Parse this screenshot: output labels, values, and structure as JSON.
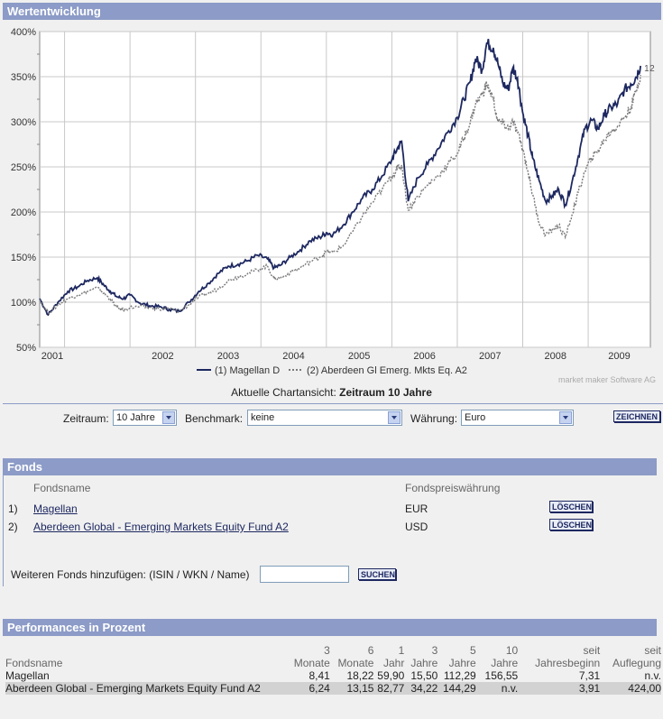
{
  "header": {
    "title": "Wertentwicklung"
  },
  "chart_data": {
    "type": "line",
    "y_axis": {
      "ticks": [
        "400%",
        "350%",
        "300%",
        "250%",
        "200%",
        "150%",
        "100%",
        "50%"
      ],
      "values": [
        400,
        350,
        300,
        250,
        200,
        150,
        100,
        50
      ],
      "range": [
        50,
        400
      ]
    },
    "x_axis": {
      "ticks": [
        "2001",
        "2002",
        "2003",
        "2004",
        "2005",
        "2006",
        "2007",
        "2008",
        "2009"
      ],
      "positions": [
        2001,
        2002,
        2003,
        2004,
        2005,
        2006,
        2007,
        2008,
        2009
      ],
      "range": [
        2000.62,
        2009.95
      ]
    },
    "series": [
      {
        "name": "Magellan D",
        "legend": "(1) Magellan D",
        "color": "#1d2860",
        "style": "solid",
        "end_label": "1",
        "x": [
          2000.62,
          2000.75,
          2000.9,
          2001.05,
          2001.2,
          2001.35,
          2001.5,
          2001.6,
          2001.7,
          2001.8,
          2001.9,
          2002.0,
          2002.15,
          2002.3,
          2002.45,
          2002.6,
          2002.75,
          2002.9,
          2003.05,
          2003.2,
          2003.35,
          2003.5,
          2003.65,
          2003.8,
          2003.95,
          2004.1,
          2004.2,
          2004.3,
          2004.45,
          2004.6,
          2004.75,
          2004.9,
          2005.0,
          2005.1,
          2005.25,
          2005.4,
          2005.55,
          2005.7,
          2005.85,
          2006.0,
          2006.08,
          2006.15,
          2006.25,
          2006.4,
          2006.55,
          2006.7,
          2006.85,
          2007.0,
          2007.1,
          2007.2,
          2007.28,
          2007.38,
          2007.45,
          2007.55,
          2007.62,
          2007.7,
          2007.78,
          2007.85,
          2007.92,
          2008.0,
          2008.08,
          2008.15,
          2008.25,
          2008.35,
          2008.45,
          2008.55,
          2008.65,
          2008.75,
          2008.85,
          2008.95,
          2009.05,
          2009.15,
          2009.25,
          2009.35,
          2009.45,
          2009.55,
          2009.65,
          2009.72,
          2009.8
        ],
        "y": [
          104,
          86,
          100,
          112,
          117,
          124,
          127,
          119,
          112,
          106,
          104,
          108,
          99,
          96,
          95,
          92,
          90,
          100,
          112,
          121,
          132,
          140,
          142,
          146,
          152,
          148,
          138,
          141,
          150,
          158,
          168,
          172,
          177,
          175,
          185,
          200,
          215,
          225,
          240,
          258,
          270,
          278,
          212,
          238,
          253,
          270,
          288,
          305,
          325,
          345,
          370,
          358,
          387,
          382,
          365,
          342,
          336,
          360,
          348,
          310,
          285,
          260,
          235,
          212,
          218,
          225,
          208,
          232,
          262,
          292,
          302,
          292,
          308,
          316,
          320,
          335,
          342,
          348,
          362
        ]
      },
      {
        "name": "Aberdeen Gl Emerg. Mkts Eq. A2",
        "legend": "(2) Aberdeen Gl Emerg. Mkts Eq. A2",
        "color": "#7a7a7a",
        "style": "dashed",
        "end_label": "2",
        "x": [
          2000.62,
          2000.75,
          2000.9,
          2001.05,
          2001.2,
          2001.35,
          2001.5,
          2001.6,
          2001.7,
          2001.8,
          2001.9,
          2002.0,
          2002.15,
          2002.3,
          2002.45,
          2002.6,
          2002.75,
          2002.9,
          2003.05,
          2003.2,
          2003.35,
          2003.5,
          2003.65,
          2003.8,
          2003.95,
          2004.1,
          2004.2,
          2004.3,
          2004.45,
          2004.6,
          2004.75,
          2004.9,
          2005.0,
          2005.1,
          2005.25,
          2005.4,
          2005.55,
          2005.7,
          2005.85,
          2006.0,
          2006.08,
          2006.15,
          2006.25,
          2006.4,
          2006.55,
          2006.7,
          2006.85,
          2007.0,
          2007.1,
          2007.2,
          2007.28,
          2007.38,
          2007.45,
          2007.55,
          2007.62,
          2007.7,
          2007.78,
          2007.85,
          2007.92,
          2008.0,
          2008.08,
          2008.15,
          2008.25,
          2008.35,
          2008.45,
          2008.55,
          2008.65,
          2008.75,
          2008.85,
          2008.95,
          2009.05,
          2009.15,
          2009.25,
          2009.35,
          2009.45,
          2009.55,
          2009.65,
          2009.72,
          2009.8
        ],
        "y": [
          103,
          88,
          97,
          104,
          108,
          112,
          116,
          110,
          103,
          94,
          91,
          94,
          95,
          94,
          92,
          93,
          90,
          97,
          106,
          110,
          115,
          124,
          128,
          132,
          136,
          140,
          126,
          127,
          133,
          138,
          145,
          150,
          156,
          155,
          162,
          178,
          195,
          210,
          225,
          240,
          248,
          252,
          202,
          218,
          230,
          240,
          252,
          265,
          282,
          300,
          320,
          330,
          342,
          325,
          300,
          298,
          292,
          300,
          288,
          270,
          245,
          220,
          188,
          175,
          180,
          185,
          172,
          196,
          222,
          245,
          260,
          268,
          280,
          290,
          295,
          305,
          315,
          332,
          352
        ]
      }
    ],
    "credit": "market maker Software AG",
    "caption_prefix": "Aktuelle Chartansicht:",
    "caption_value": "Zeitraum 10 Jahre"
  },
  "controls": {
    "zeitraum_label": "Zeitraum:",
    "zeitraum_value": "10 Jahre",
    "benchmark_label": "Benchmark:",
    "benchmark_value": "keine",
    "waehrung_label": "Währung:",
    "waehrung_value": "Euro",
    "draw_button": "ZEICHNEN"
  },
  "fonds": {
    "title": "Fonds",
    "col_name": "Fondsname",
    "col_currency": "Fondspreiswährung",
    "items": [
      {
        "index": "1)",
        "name": "Magellan",
        "currency": "EUR",
        "delete": "LÖSCHEN"
      },
      {
        "index": "2)",
        "name": "Aberdeen Global - Emerging Markets Equity Fund A2",
        "currency": "USD",
        "delete": "LÖSCHEN"
      }
    ],
    "add_label": "Weiteren Fonds hinzufügen: (ISIN / WKN / Name)",
    "add_input_value": "",
    "search_button": "SUCHEN"
  },
  "performance": {
    "title": "Performances in Prozent",
    "header_top": [
      "",
      "3",
      "6",
      "1",
      "3",
      "5",
      "10",
      "seit",
      "seit"
    ],
    "header_bottom": [
      "Fondsname",
      "Monate",
      "Monate",
      "Jahr",
      "Jahre",
      "Jahre",
      "Jahre",
      "Jahresbeginn",
      "Auflegung"
    ],
    "rows": [
      [
        "Magellan",
        "8,41",
        "18,22",
        "59,90",
        "15,50",
        "112,29",
        "156,55",
        "7,31",
        "n.v."
      ],
      [
        "Aberdeen Global - Emerging Markets Equity Fund A2",
        "6,24",
        "13,15",
        "82,77",
        "34,22",
        "144,29",
        "n.v.",
        "3,91",
        "424,00"
      ]
    ]
  }
}
